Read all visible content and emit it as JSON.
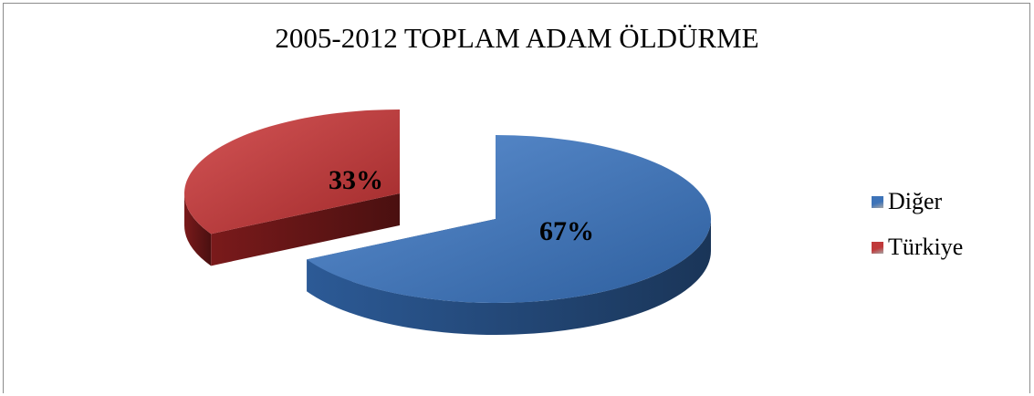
{
  "chart_data": {
    "type": "pie",
    "title": "2005-2012 TOPLAM ADAM ÖLDÜRME",
    "categories": [
      "Diğer",
      "Türkiye"
    ],
    "values": [
      67,
      33
    ],
    "labels": [
      "67%",
      "33%"
    ],
    "colors": [
      "#3d73b8",
      "#c0393a"
    ],
    "legend": "right",
    "three_d": true,
    "exploded": true
  }
}
